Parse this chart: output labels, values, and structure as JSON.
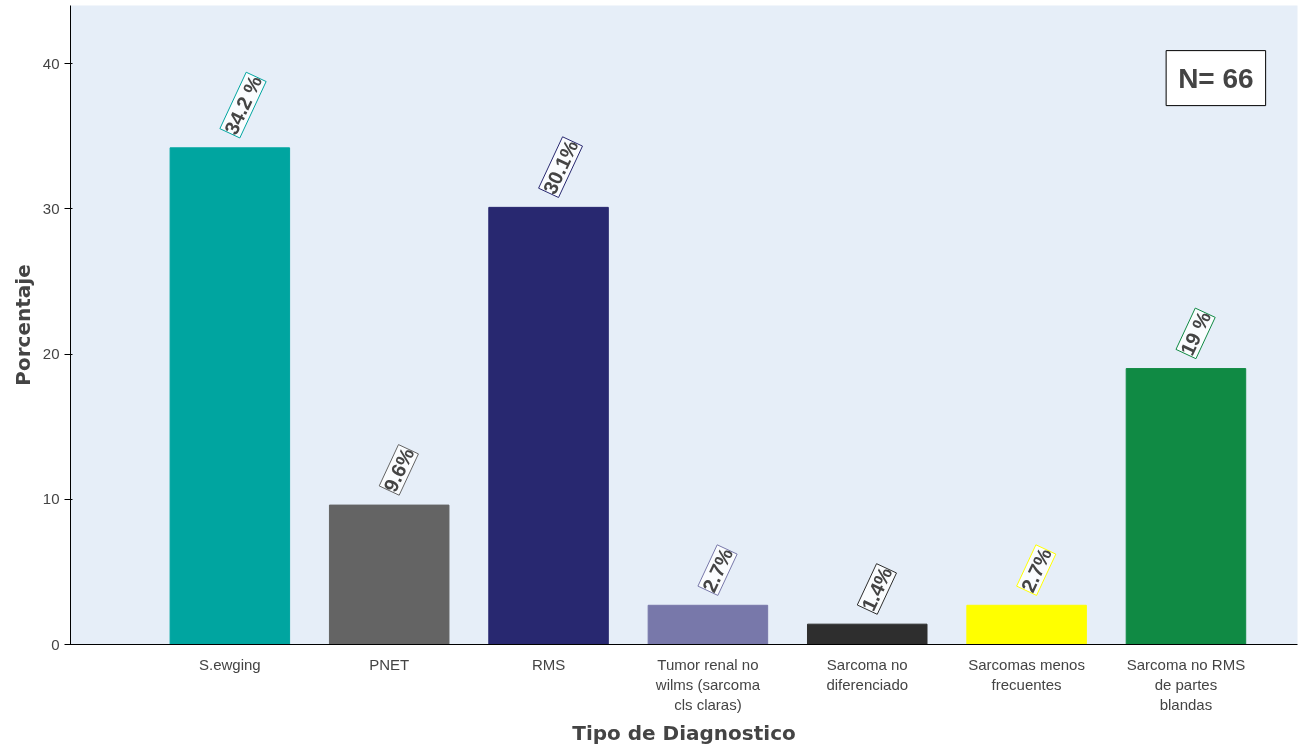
{
  "chart_data": {
    "type": "bar",
    "categories": [
      "S.ewging",
      "PNET",
      "RMS",
      "Tumor renal no wilms (sarcoma cls claras)",
      "Sarcoma no diferenciado",
      "Sarcomas menos frecuentes",
      "Sarcoma no RMS de partes blandas"
    ],
    "values": [
      34.2,
      9.6,
      30.1,
      2.7,
      1.4,
      2.7,
      19
    ],
    "colors": [
      "#00a5a0",
      "#646464",
      "#282870",
      "#7878aa",
      "#2e2e2e",
      "#ffff00",
      "#108a44"
    ],
    "value_labels": [
      "34.2 %",
      "9.6%",
      "30.1%",
      "2.7%",
      "1.4%",
      "2.7%",
      "19 %"
    ],
    "xlabel": "Tipo de Diagnostico",
    "ylabel": "Porcentaje",
    "ylim": [
      0,
      44
    ],
    "yticks": [
      0,
      10,
      20,
      30,
      40
    ],
    "grid": false,
    "annotations": [
      "N= 66"
    ]
  }
}
